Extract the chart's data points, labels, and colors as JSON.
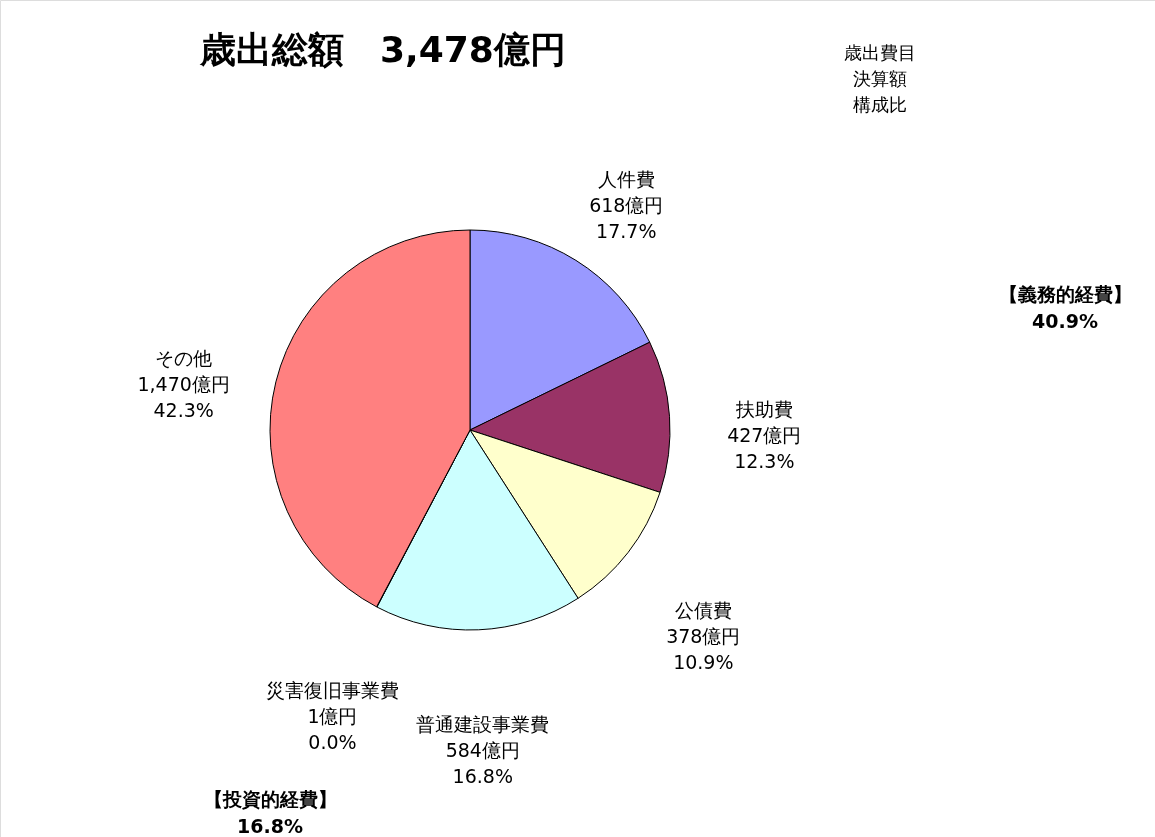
{
  "chart_data": {
    "type": "pie",
    "title": "歳出総額　3,478億円",
    "categories": [
      "人件費",
      "扶助費",
      "公債費",
      "普通建設事業費",
      "災害復旧事業費",
      "その他"
    ],
    "values": [
      618,
      427,
      378,
      584,
      1,
      1470
    ],
    "colors": [
      "#9999ff",
      "#993366",
      "#ffffcc",
      "#ccffff",
      "#660066",
      "#ff8080"
    ],
    "value_labels": [
      "618億円\n17.7%",
      "427億円\n12.3%",
      "378億円\n10.9%",
      "584億円\n16.8%",
      "1億円\n0.0%",
      "1,470億円\n42.3%"
    ],
    "annotations": [
      "歳出費目",
      "決算額",
      "構成比",
      "【義務的経費】\n40.9%",
      "【投資的経費】\n16.8%"
    ],
    "legend": false
  }
}
